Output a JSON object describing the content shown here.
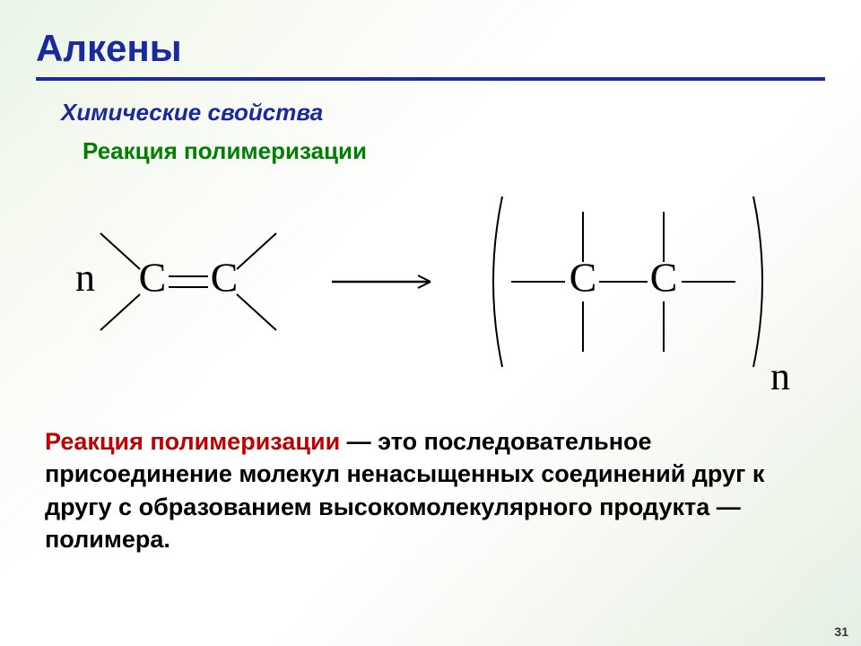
{
  "title": {
    "text": "Алкены",
    "color": "#1a2a9a"
  },
  "underline_color": "#1a2a9a",
  "subtitle": {
    "text": "Химические свойства",
    "color": "#1a2a9a"
  },
  "reaction_name": {
    "text": "Реакция полимеризации",
    "color": "#008000"
  },
  "diagram": {
    "coeff_n_left": "n",
    "atom_C": "C",
    "coeff_n_right": "n",
    "stroke_color": "#000000",
    "text_color": "#000000",
    "font_size_atom": 46,
    "font_size_coeff": 44,
    "stroke_width": 2
  },
  "definition": {
    "term": "Реакция полимеризации",
    "term_color": "#c00000",
    "body": " — это последовательное присоединение молекул ненасыщенных соединений друг к другу с образованием высокомолекулярного продукта — полимера."
  },
  "page_number": "31"
}
